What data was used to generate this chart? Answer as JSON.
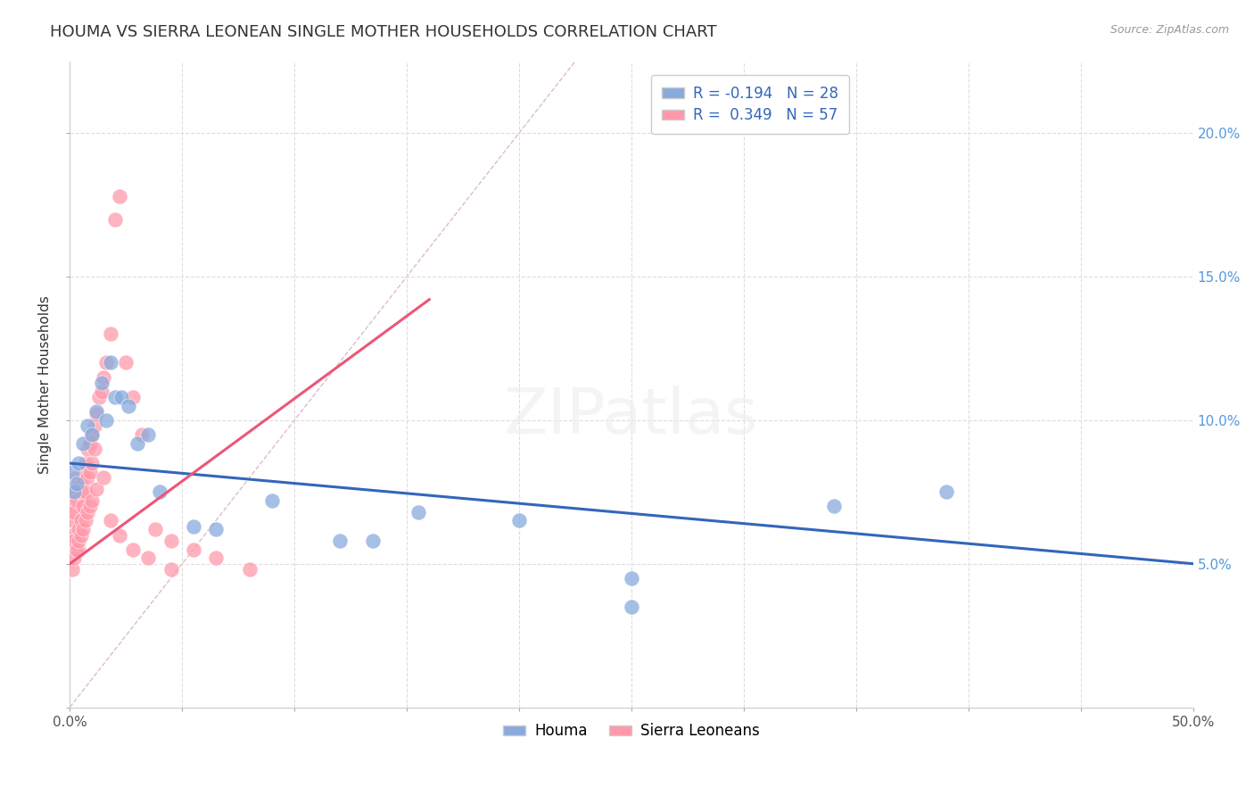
{
  "title": "HOUMA VS SIERRA LEONEAN SINGLE MOTHER HOUSEHOLDS CORRELATION CHART",
  "source": "Source: ZipAtlas.com",
  "ylabel": "Single Mother Households",
  "xlim": [
    0.0,
    0.5
  ],
  "ylim": [
    0.0,
    0.225
  ],
  "xticks": [
    0.0,
    0.05,
    0.1,
    0.15,
    0.2,
    0.25,
    0.3,
    0.35,
    0.4,
    0.45,
    0.5
  ],
  "yticks": [
    0.0,
    0.05,
    0.1,
    0.15,
    0.2
  ],
  "houma_R": -0.194,
  "houma_N": 28,
  "sierra_R": 0.349,
  "sierra_N": 57,
  "houma_color": "#88AADD",
  "sierra_color": "#FF99AA",
  "houma_line_color": "#3366BB",
  "sierra_line_color": "#EE5577",
  "ref_line_color": "#DDBBCC",
  "background_color": "#FFFFFF",
  "grid_color": "#DDDDDD",
  "title_fontsize": 13,
  "axis_label_fontsize": 11,
  "tick_fontsize": 11,
  "legend_fontsize": 12,
  "houma_scatter_x": [
    0.001,
    0.002,
    0.003,
    0.004,
    0.006,
    0.008,
    0.01,
    0.012,
    0.014,
    0.016,
    0.018,
    0.02,
    0.023,
    0.026,
    0.03,
    0.035,
    0.04,
    0.055,
    0.065,
    0.09,
    0.12,
    0.135,
    0.155,
    0.2,
    0.25,
    0.34,
    0.39,
    0.25
  ],
  "houma_scatter_y": [
    0.082,
    0.075,
    0.078,
    0.085,
    0.092,
    0.098,
    0.095,
    0.103,
    0.113,
    0.1,
    0.12,
    0.108,
    0.108,
    0.105,
    0.092,
    0.095,
    0.075,
    0.063,
    0.062,
    0.072,
    0.058,
    0.058,
    0.068,
    0.065,
    0.045,
    0.07,
    0.075,
    0.035
  ],
  "sierra_scatter_x": [
    0.001,
    0.001,
    0.001,
    0.002,
    0.002,
    0.002,
    0.003,
    0.003,
    0.004,
    0.004,
    0.005,
    0.005,
    0.006,
    0.006,
    0.007,
    0.007,
    0.008,
    0.008,
    0.009,
    0.009,
    0.01,
    0.01,
    0.011,
    0.011,
    0.012,
    0.013,
    0.014,
    0.015,
    0.016,
    0.018,
    0.02,
    0.022,
    0.025,
    0.028,
    0.032,
    0.038,
    0.045,
    0.055,
    0.065,
    0.08,
    0.001,
    0.002,
    0.003,
    0.004,
    0.005,
    0.006,
    0.007,
    0.008,
    0.009,
    0.01,
    0.012,
    0.015,
    0.018,
    0.022,
    0.028,
    0.035,
    0.045
  ],
  "sierra_scatter_y": [
    0.07,
    0.065,
    0.06,
    0.075,
    0.068,
    0.058,
    0.08,
    0.072,
    0.062,
    0.055,
    0.075,
    0.065,
    0.08,
    0.07,
    0.085,
    0.075,
    0.09,
    0.08,
    0.092,
    0.082,
    0.095,
    0.085,
    0.098,
    0.09,
    0.102,
    0.108,
    0.11,
    0.115,
    0.12,
    0.13,
    0.17,
    0.178,
    0.12,
    0.108,
    0.095,
    0.062,
    0.058,
    0.055,
    0.052,
    0.048,
    0.048,
    0.052,
    0.055,
    0.058,
    0.06,
    0.062,
    0.065,
    0.068,
    0.07,
    0.072,
    0.076,
    0.08,
    0.065,
    0.06,
    0.055,
    0.052,
    0.048
  ],
  "houma_trend_x0": 0.0,
  "houma_trend_x1": 0.5,
  "houma_trend_y0": 0.085,
  "houma_trend_y1": 0.05,
  "sierra_trend_x0": 0.0,
  "sierra_trend_x1": 0.16,
  "sierra_trend_y0": 0.05,
  "sierra_trend_y1": 0.142
}
